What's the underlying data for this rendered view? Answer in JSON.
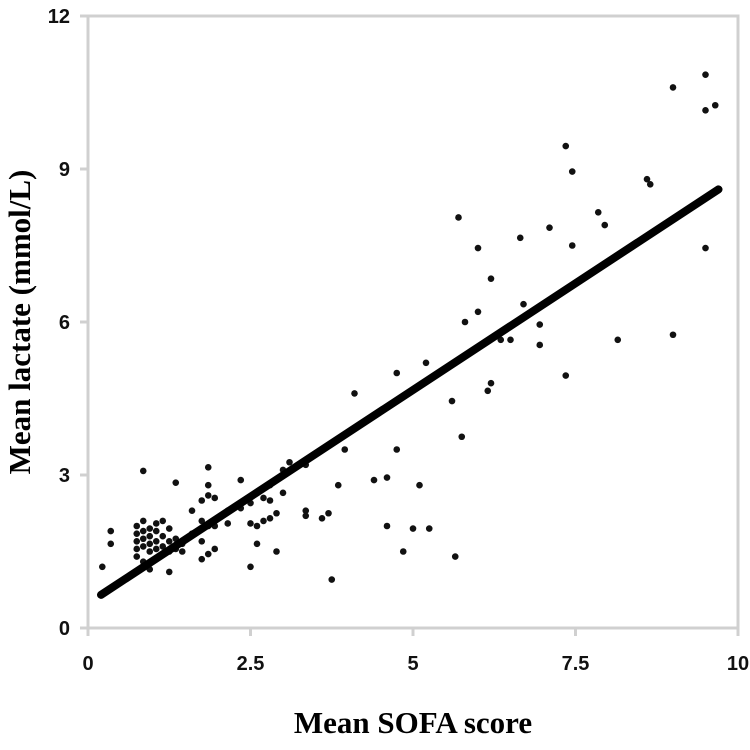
{
  "chart_data": {
    "type": "scatter",
    "xlabel": "Mean SOFA score",
    "ylabel": "Mean lactate (mmol/L)",
    "xlim": [
      0,
      10
    ],
    "ylim": [
      0,
      12
    ],
    "x_ticks": [
      0,
      2.5,
      5,
      7.5,
      10
    ],
    "x_tick_labels": [
      "0",
      "2.5",
      "5",
      "7.5",
      "10"
    ],
    "y_ticks": [
      0,
      3,
      6,
      9,
      12
    ],
    "y_tick_labels": [
      "0",
      "3",
      "6",
      "9",
      "12"
    ],
    "grid": false,
    "colors": {
      "points": "#111111",
      "trend": "#000000",
      "axes": "#d0d0d0"
    },
    "trendline": {
      "x": [
        0.2,
        9.7
      ],
      "y": [
        0.65,
        8.6
      ]
    },
    "points": [
      [
        0.22,
        1.2
      ],
      [
        0.35,
        1.9
      ],
      [
        0.35,
        1.65
      ],
      [
        0.75,
        2.0
      ],
      [
        0.75,
        1.85
      ],
      [
        0.75,
        1.7
      ],
      [
        0.75,
        1.55
      ],
      [
        0.75,
        1.4
      ],
      [
        0.85,
        2.1
      ],
      [
        0.85,
        1.9
      ],
      [
        0.85,
        1.75
      ],
      [
        0.85,
        1.6
      ],
      [
        0.85,
        1.3
      ],
      [
        0.85,
        3.08
      ],
      [
        0.95,
        1.95
      ],
      [
        0.95,
        1.8
      ],
      [
        0.95,
        1.65
      ],
      [
        0.95,
        1.5
      ],
      [
        0.95,
        1.15
      ],
      [
        1.05,
        2.05
      ],
      [
        1.05,
        1.9
      ],
      [
        1.05,
        1.7
      ],
      [
        1.05,
        1.55
      ],
      [
        1.05,
        1.35
      ],
      [
        1.15,
        2.1
      ],
      [
        1.15,
        1.8
      ],
      [
        1.15,
        1.6
      ],
      [
        1.15,
        1.45
      ],
      [
        1.25,
        1.95
      ],
      [
        1.25,
        1.7
      ],
      [
        1.25,
        1.5
      ],
      [
        1.25,
        1.1
      ],
      [
        1.35,
        2.85
      ],
      [
        1.35,
        1.75
      ],
      [
        1.35,
        1.55
      ],
      [
        1.45,
        1.65
      ],
      [
        1.45,
        1.5
      ],
      [
        1.6,
        2.3
      ],
      [
        1.6,
        1.85
      ],
      [
        1.75,
        2.5
      ],
      [
        1.75,
        2.1
      ],
      [
        1.75,
        1.7
      ],
      [
        1.75,
        1.35
      ],
      [
        1.85,
        3.15
      ],
      [
        1.85,
        2.8
      ],
      [
        1.85,
        2.6
      ],
      [
        1.85,
        2.0
      ],
      [
        1.85,
        1.45
      ],
      [
        1.95,
        2.55
      ],
      [
        1.95,
        2.0
      ],
      [
        1.95,
        1.55
      ],
      [
        2.15,
        2.3
      ],
      [
        2.15,
        2.05
      ],
      [
        2.35,
        2.9
      ],
      [
        2.35,
        2.35
      ],
      [
        2.5,
        2.45
      ],
      [
        2.5,
        2.05
      ],
      [
        2.5,
        1.2
      ],
      [
        2.6,
        2.65
      ],
      [
        2.6,
        2.0
      ],
      [
        2.6,
        1.65
      ],
      [
        2.7,
        2.75
      ],
      [
        2.7,
        2.55
      ],
      [
        2.7,
        2.1
      ],
      [
        2.8,
        2.8
      ],
      [
        2.8,
        2.5
      ],
      [
        2.8,
        2.15
      ],
      [
        2.9,
        2.25
      ],
      [
        2.9,
        1.5
      ],
      [
        3.0,
        3.1
      ],
      [
        3.0,
        2.65
      ],
      [
        3.1,
        3.25
      ],
      [
        3.35,
        3.2
      ],
      [
        3.35,
        2.3
      ],
      [
        3.35,
        2.2
      ],
      [
        3.6,
        2.15
      ],
      [
        3.7,
        2.25
      ],
      [
        3.75,
        0.95
      ],
      [
        3.85,
        2.8
      ],
      [
        3.95,
        3.5
      ],
      [
        4.1,
        4.6
      ],
      [
        4.4,
        2.9
      ],
      [
        4.6,
        2.95
      ],
      [
        4.6,
        2.0
      ],
      [
        4.75,
        5.0
      ],
      [
        4.75,
        3.5
      ],
      [
        4.85,
        1.5
      ],
      [
        5.0,
        1.95
      ],
      [
        5.1,
        2.8
      ],
      [
        5.2,
        5.2
      ],
      [
        5.25,
        1.95
      ],
      [
        5.6,
        4.45
      ],
      [
        5.65,
        1.4
      ],
      [
        5.7,
        8.05
      ],
      [
        5.75,
        3.75
      ],
      [
        5.8,
        6.0
      ],
      [
        6.0,
        7.45
      ],
      [
        6.0,
        6.2
      ],
      [
        6.15,
        4.65
      ],
      [
        6.2,
        4.8
      ],
      [
        6.2,
        6.85
      ],
      [
        6.35,
        5.65
      ],
      [
        6.5,
        5.65
      ],
      [
        6.65,
        7.65
      ],
      [
        6.7,
        6.35
      ],
      [
        6.95,
        5.95
      ],
      [
        6.95,
        5.55
      ],
      [
        7.1,
        7.85
      ],
      [
        7.35,
        9.45
      ],
      [
        7.35,
        4.95
      ],
      [
        7.45,
        8.95
      ],
      [
        7.45,
        7.5
      ],
      [
        7.85,
        8.15
      ],
      [
        7.95,
        7.9
      ],
      [
        8.15,
        5.65
      ],
      [
        8.6,
        8.8
      ],
      [
        8.65,
        8.7
      ],
      [
        9.0,
        10.6
      ],
      [
        9.0,
        5.75
      ],
      [
        9.5,
        10.85
      ],
      [
        9.5,
        10.15
      ],
      [
        9.5,
        7.45
      ],
      [
        9.65,
        10.25
      ]
    ]
  }
}
